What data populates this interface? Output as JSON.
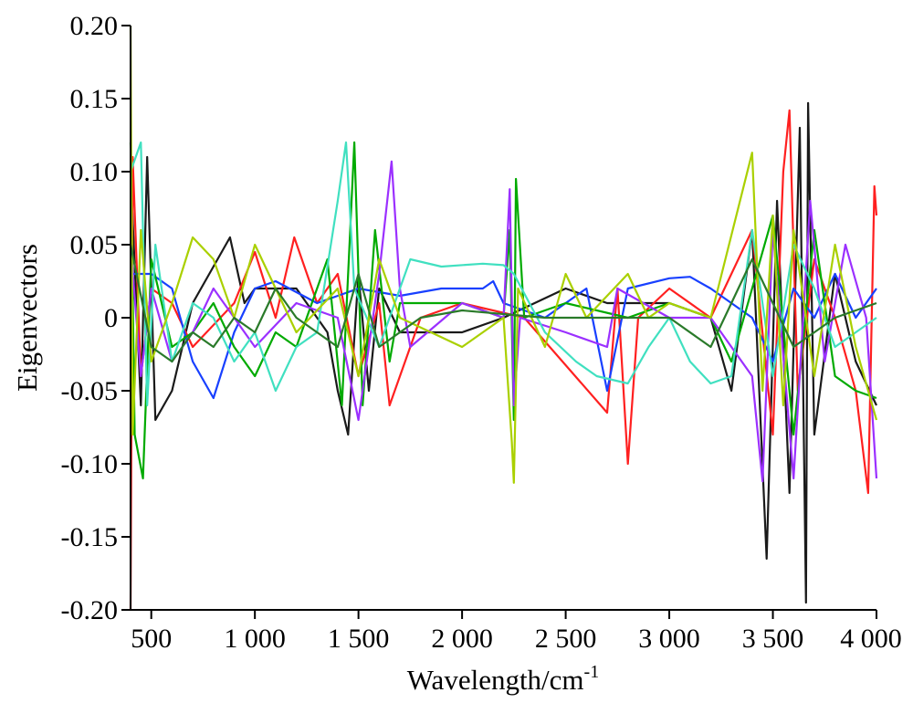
{
  "chart_data": {
    "type": "line",
    "title": "",
    "xlabel": "Wavelength/cm",
    "xlabel_superscript": "-1",
    "ylabel": "Eigenvectors",
    "xlim": [
      400,
      4000
    ],
    "ylim": [
      -0.2,
      0.2
    ],
    "x_ticks": [
      {
        "value": 500,
        "label": "500"
      },
      {
        "value": 1000,
        "label": "1 000"
      },
      {
        "value": 1500,
        "label": "1 500"
      },
      {
        "value": 2000,
        "label": "2 000"
      },
      {
        "value": 2500,
        "label": "2 500"
      },
      {
        "value": 3000,
        "label": "3 000"
      },
      {
        "value": 3500,
        "label": "3 500"
      },
      {
        "value": 4000,
        "label": "4 000"
      }
    ],
    "y_ticks": [
      {
        "value": 0.2,
        "label": "0.20"
      },
      {
        "value": 0.15,
        "label": "0.15"
      },
      {
        "value": 0.1,
        "label": "0.10"
      },
      {
        "value": 0.05,
        "label": "0.05"
      },
      {
        "value": 0,
        "label": "0"
      },
      {
        "value": -0.05,
        "label": "-0.05"
      },
      {
        "value": -0.1,
        "label": "-0.10"
      },
      {
        "value": -0.15,
        "label": "-0.15"
      },
      {
        "value": -0.2,
        "label": "-0.20"
      }
    ],
    "grid": false,
    "legend": "none",
    "series": [
      {
        "color": "#1a1a1a",
        "points": [
          [
            400,
            0.1
          ],
          [
            450,
            -0.06
          ],
          [
            480,
            0.11
          ],
          [
            520,
            -0.07
          ],
          [
            600,
            -0.05
          ],
          [
            700,
            0.01
          ],
          [
            880,
            0.055
          ],
          [
            950,
            0.01
          ],
          [
            1000,
            0.02
          ],
          [
            1200,
            0.02
          ],
          [
            1350,
            -0.01
          ],
          [
            1400,
            -0.05
          ],
          [
            1450,
            -0.08
          ],
          [
            1500,
            0.03
          ],
          [
            1550,
            -0.05
          ],
          [
            1600,
            0.02
          ],
          [
            1700,
            -0.01
          ],
          [
            2000,
            -0.01
          ],
          [
            2200,
            0.0
          ],
          [
            2500,
            0.02
          ],
          [
            2700,
            0.01
          ],
          [
            3000,
            0.01
          ],
          [
            3200,
            0.0
          ],
          [
            3300,
            -0.05
          ],
          [
            3400,
            0.06
          ],
          [
            3470,
            -0.165
          ],
          [
            3520,
            0.08
          ],
          [
            3580,
            -0.12
          ],
          [
            3630,
            0.13
          ],
          [
            3660,
            -0.195
          ],
          [
            3670,
            0.147
          ],
          [
            3700,
            -0.08
          ],
          [
            3800,
            0.03
          ],
          [
            3900,
            -0.03
          ],
          [
            4000,
            -0.06
          ]
        ]
      },
      {
        "color": "#ff2020",
        "points": [
          [
            400,
            -0.2
          ],
          [
            410,
            0.11
          ],
          [
            450,
            -0.04
          ],
          [
            500,
            0.02
          ],
          [
            600,
            0.01
          ],
          [
            700,
            -0.02
          ],
          [
            900,
            0.01
          ],
          [
            1000,
            0.045
          ],
          [
            1100,
            0.0
          ],
          [
            1190,
            0.055
          ],
          [
            1300,
            0.01
          ],
          [
            1400,
            0.03
          ],
          [
            1500,
            -0.04
          ],
          [
            1600,
            0.01
          ],
          [
            1650,
            -0.06
          ],
          [
            1800,
            0.0
          ],
          [
            2000,
            0.01
          ],
          [
            2300,
            0.0
          ],
          [
            2700,
            -0.065
          ],
          [
            2750,
            0.02
          ],
          [
            2800,
            -0.1
          ],
          [
            2850,
            0.0
          ],
          [
            3000,
            0.02
          ],
          [
            3200,
            0.0
          ],
          [
            3400,
            0.06
          ],
          [
            3500,
            -0.08
          ],
          [
            3550,
            0.1
          ],
          [
            3580,
            0.142
          ],
          [
            3620,
            -0.05
          ],
          [
            3700,
            0.04
          ],
          [
            3800,
            0.0
          ],
          [
            3900,
            -0.05
          ],
          [
            3960,
            -0.12
          ],
          [
            3990,
            0.09
          ],
          [
            4000,
            0.07
          ]
        ]
      },
      {
        "color": "#1840ff",
        "points": [
          [
            400,
            0.03
          ],
          [
            500,
            0.03
          ],
          [
            600,
            0.02
          ],
          [
            700,
            -0.03
          ],
          [
            800,
            -0.055
          ],
          [
            900,
            -0.01
          ],
          [
            1000,
            0.02
          ],
          [
            1100,
            0.025
          ],
          [
            1300,
            0.01
          ],
          [
            1500,
            0.02
          ],
          [
            1700,
            0.015
          ],
          [
            1900,
            0.02
          ],
          [
            2100,
            0.02
          ],
          [
            2150,
            0.025
          ],
          [
            2200,
            0.01
          ],
          [
            2400,
            0.0
          ],
          [
            2600,
            0.02
          ],
          [
            2700,
            -0.05
          ],
          [
            2800,
            0.02
          ],
          [
            3000,
            0.027
          ],
          [
            3100,
            0.028
          ],
          [
            3200,
            0.02
          ],
          [
            3400,
            0.0
          ],
          [
            3500,
            -0.03
          ],
          [
            3600,
            0.02
          ],
          [
            3700,
            0.0
          ],
          [
            3800,
            0.03
          ],
          [
            3900,
            0.0
          ],
          [
            4000,
            0.02
          ]
        ]
      },
      {
        "color": "#00aa00",
        "points": [
          [
            400,
            0.12
          ],
          [
            420,
            -0.08
          ],
          [
            460,
            -0.11
          ],
          [
            500,
            0.04
          ],
          [
            600,
            -0.02
          ],
          [
            700,
            -0.01
          ],
          [
            800,
            0.01
          ],
          [
            900,
            -0.02
          ],
          [
            1000,
            -0.04
          ],
          [
            1100,
            -0.01
          ],
          [
            1200,
            -0.02
          ],
          [
            1350,
            0.04
          ],
          [
            1420,
            -0.06
          ],
          [
            1480,
            0.12
          ],
          [
            1520,
            -0.06
          ],
          [
            1580,
            0.06
          ],
          [
            1650,
            -0.03
          ],
          [
            1700,
            0.01
          ],
          [
            2000,
            0.01
          ],
          [
            2200,
            0.0
          ],
          [
            2230,
            0.06
          ],
          [
            2250,
            -0.07
          ],
          [
            2260,
            0.095
          ],
          [
            2300,
            0.0
          ],
          [
            2500,
            0.01
          ],
          [
            2800,
            0.0
          ],
          [
            3000,
            0.01
          ],
          [
            3200,
            0.0
          ],
          [
            3300,
            -0.03
          ],
          [
            3500,
            0.07
          ],
          [
            3600,
            -0.08
          ],
          [
            3700,
            0.06
          ],
          [
            3800,
            -0.04
          ],
          [
            3900,
            -0.05
          ],
          [
            4000,
            -0.055
          ]
        ]
      },
      {
        "color": "#9b30ff",
        "points": [
          [
            400,
            0.05
          ],
          [
            450,
            -0.04
          ],
          [
            500,
            0.02
          ],
          [
            600,
            -0.03
          ],
          [
            700,
            -0.01
          ],
          [
            800,
            0.02
          ],
          [
            1000,
            -0.02
          ],
          [
            1200,
            0.01
          ],
          [
            1400,
            0.0
          ],
          [
            1500,
            -0.07
          ],
          [
            1600,
            0.03
          ],
          [
            1660,
            0.107
          ],
          [
            1700,
            0.02
          ],
          [
            1750,
            -0.02
          ],
          [
            2000,
            0.01
          ],
          [
            2200,
            0.0
          ],
          [
            2230,
            0.088
          ],
          [
            2250,
            -0.06
          ],
          [
            2280,
            0.0
          ],
          [
            2500,
            -0.01
          ],
          [
            2700,
            -0.02
          ],
          [
            2750,
            0.02
          ],
          [
            3000,
            0.0
          ],
          [
            3200,
            0.0
          ],
          [
            3400,
            -0.04
          ],
          [
            3450,
            -0.112
          ],
          [
            3500,
            0.06
          ],
          [
            3600,
            -0.11
          ],
          [
            3680,
            0.08
          ],
          [
            3750,
            -0.03
          ],
          [
            3850,
            0.05
          ],
          [
            3950,
            0.0
          ],
          [
            4000,
            -0.11
          ]
        ]
      },
      {
        "color": "#40e0c0",
        "points": [
          [
            400,
            0.1
          ],
          [
            450,
            0.12
          ],
          [
            480,
            -0.06
          ],
          [
            520,
            0.05
          ],
          [
            600,
            -0.03
          ],
          [
            700,
            0.01
          ],
          [
            800,
            0.0
          ],
          [
            900,
            -0.03
          ],
          [
            1000,
            -0.01
          ],
          [
            1100,
            -0.05
          ],
          [
            1200,
            -0.02
          ],
          [
            1300,
            -0.01
          ],
          [
            1400,
            0.08
          ],
          [
            1440,
            0.12
          ],
          [
            1480,
            0.02
          ],
          [
            1600,
            -0.02
          ],
          [
            1700,
            0.02
          ],
          [
            1750,
            0.04
          ],
          [
            1900,
            0.035
          ],
          [
            2100,
            0.037
          ],
          [
            2200,
            0.036
          ],
          [
            2250,
            0.03
          ],
          [
            2400,
            -0.01
          ],
          [
            2550,
            -0.03
          ],
          [
            2650,
            -0.04
          ],
          [
            2800,
            -0.045
          ],
          [
            2900,
            -0.02
          ],
          [
            3000,
            0.0
          ],
          [
            3100,
            -0.03
          ],
          [
            3200,
            -0.045
          ],
          [
            3300,
            -0.04
          ],
          [
            3400,
            0.06
          ],
          [
            3500,
            -0.04
          ],
          [
            3600,
            0.05
          ],
          [
            3700,
            0.02
          ],
          [
            3800,
            -0.02
          ],
          [
            4000,
            0.0
          ]
        ]
      },
      {
        "color": "#aad000",
        "points": [
          [
            400,
            0.2
          ],
          [
            410,
            -0.08
          ],
          [
            450,
            0.06
          ],
          [
            500,
            -0.03
          ],
          [
            600,
            0.01
          ],
          [
            700,
            0.055
          ],
          [
            800,
            0.04
          ],
          [
            900,
            0.0
          ],
          [
            1000,
            0.05
          ],
          [
            1100,
            0.02
          ],
          [
            1200,
            -0.01
          ],
          [
            1400,
            0.02
          ],
          [
            1500,
            -0.04
          ],
          [
            1600,
            0.04
          ],
          [
            1700,
            0.0
          ],
          [
            2000,
            -0.02
          ],
          [
            2200,
            0.0
          ],
          [
            2240,
            -0.085
          ],
          [
            2250,
            -0.113
          ],
          [
            2270,
            0.02
          ],
          [
            2400,
            -0.02
          ],
          [
            2500,
            0.03
          ],
          [
            2600,
            0.0
          ],
          [
            2800,
            0.03
          ],
          [
            2900,
            0.0
          ],
          [
            3000,
            0.01
          ],
          [
            3200,
            0.0
          ],
          [
            3400,
            0.113
          ],
          [
            3450,
            -0.05
          ],
          [
            3500,
            0.07
          ],
          [
            3550,
            -0.06
          ],
          [
            3600,
            0.06
          ],
          [
            3700,
            -0.04
          ],
          [
            3800,
            0.05
          ],
          [
            3900,
            -0.02
          ],
          [
            4000,
            -0.07
          ]
        ]
      },
      {
        "color": "#2a7a2a",
        "points": [
          [
            400,
            0.05
          ],
          [
            500,
            -0.02
          ],
          [
            600,
            -0.03
          ],
          [
            700,
            -0.01
          ],
          [
            800,
            -0.02
          ],
          [
            900,
            0.0
          ],
          [
            1000,
            -0.01
          ],
          [
            1100,
            0.02
          ],
          [
            1200,
            0.0
          ],
          [
            1400,
            -0.02
          ],
          [
            1500,
            0.03
          ],
          [
            1600,
            -0.02
          ],
          [
            1800,
            0.0
          ],
          [
            2000,
            0.005
          ],
          [
            2400,
            0.0
          ],
          [
            2800,
            0.0
          ],
          [
            3000,
            0.0
          ],
          [
            3200,
            -0.02
          ],
          [
            3400,
            0.04
          ],
          [
            3600,
            -0.02
          ],
          [
            3800,
            0.0
          ],
          [
            4000,
            0.01
          ]
        ]
      }
    ]
  }
}
